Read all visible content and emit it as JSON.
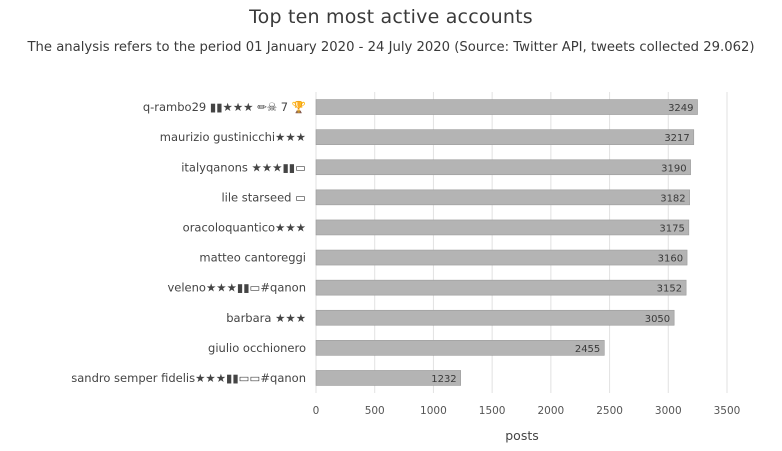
{
  "chart_data": {
    "type": "bar",
    "orientation": "horizontal",
    "title": "Top ten most active accounts",
    "subtitle": "The analysis refers to the period 01 January 2020 - 24 July 2020 (Source: Twitter API, tweets collected 29.062)",
    "xlabel": "posts",
    "ylabel": "",
    "xlim": [
      0,
      3500
    ],
    "xticks": [
      0,
      500,
      1000,
      1500,
      2000,
      2500,
      3000,
      3500
    ],
    "grid": "vertical",
    "legend": "none",
    "categories": [
      "q-rambo29 ▮▮★★★ ✏☠ 7 🏆",
      "maurizio gustinicchi★★★",
      "italyqanons ★★★▮▮▭",
      "lile starseed ▭",
      "oracoloquantico★★★",
      "matteo cantoreggi",
      "veleno★★★▮▮▭#qanon",
      "barbara ★★★",
      "giulio occhionero",
      "sandro semper fidelis★★★▮▮▭▭#qanon"
    ],
    "values": [
      3249,
      3217,
      3190,
      3182,
      3175,
      3160,
      3152,
      3050,
      2455,
      1232
    ],
    "colors": {
      "bar": "#b4b4b4",
      "bar_stroke": "#9a9a9a",
      "grid": "#e2e2e2"
    }
  }
}
